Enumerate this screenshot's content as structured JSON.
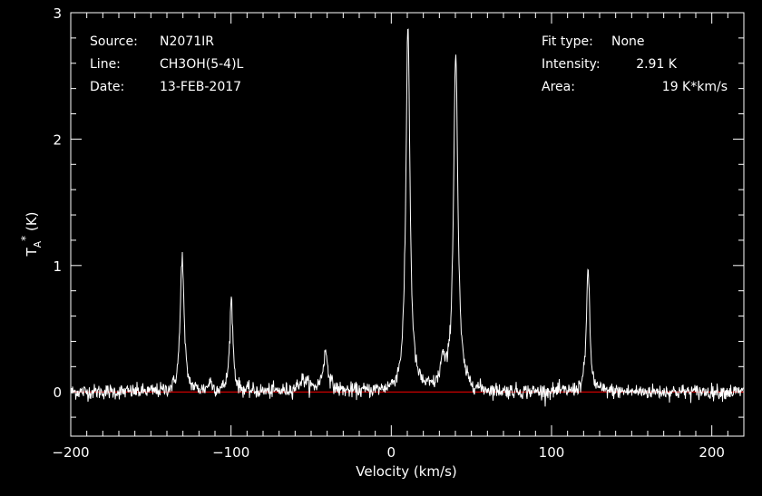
{
  "chart_data": {
    "type": "line",
    "xlabel": "Velocity (km/s)",
    "ylabel": {
      "main": "T",
      "sub": "A",
      "sup": "*",
      "unit": "(K)"
    },
    "xlim": [
      -200,
      220
    ],
    "ylim": [
      -0.35,
      3.0
    ],
    "x_ticks": [
      -200,
      -100,
      0,
      100,
      200
    ],
    "x_tick_labels": [
      "−200",
      "−100",
      "0",
      "100",
      "200"
    ],
    "y_ticks": [
      0,
      1,
      2,
      3
    ],
    "y_tick_labels": [
      "0",
      "1",
      "2",
      "3"
    ],
    "baseline": 0,
    "line_color": "#ffffff",
    "baseline_color": "#ff0000",
    "noise_rms": 0.03,
    "lines": [
      {
        "center": -130.5,
        "peak": 1.08,
        "width": 1.4
      },
      {
        "center": -99.8,
        "peak": 0.73,
        "width": 1.2
      },
      {
        "center": -113,
        "peak": 0.07,
        "width": 1.5
      },
      {
        "center": -55,
        "peak": 0.09,
        "width": 3.5
      },
      {
        "center": -41,
        "peak": 0.3,
        "width": 2.0
      },
      {
        "center": 10.4,
        "peak": 2.91,
        "width": 1.5
      },
      {
        "center": 32,
        "peak": 0.2,
        "width": 1.6
      },
      {
        "center": 40.2,
        "peak": 2.69,
        "width": 1.6
      },
      {
        "center": 122.8,
        "peak": 1.0,
        "width": 1.2
      }
    ]
  },
  "info": {
    "left": [
      {
        "label": "Source:",
        "value": "N2071IR"
      },
      {
        "label": "Line:",
        "value": "CH3OH(5-4)L"
      },
      {
        "label": "Date:",
        "value": "13-FEB-2017"
      }
    ],
    "right": [
      {
        "label": "Fit type:",
        "value": "None"
      },
      {
        "label": "Intensity:",
        "value": "2.91 K"
      },
      {
        "label": "Area:",
        "value": "19 K*km/s"
      }
    ]
  }
}
